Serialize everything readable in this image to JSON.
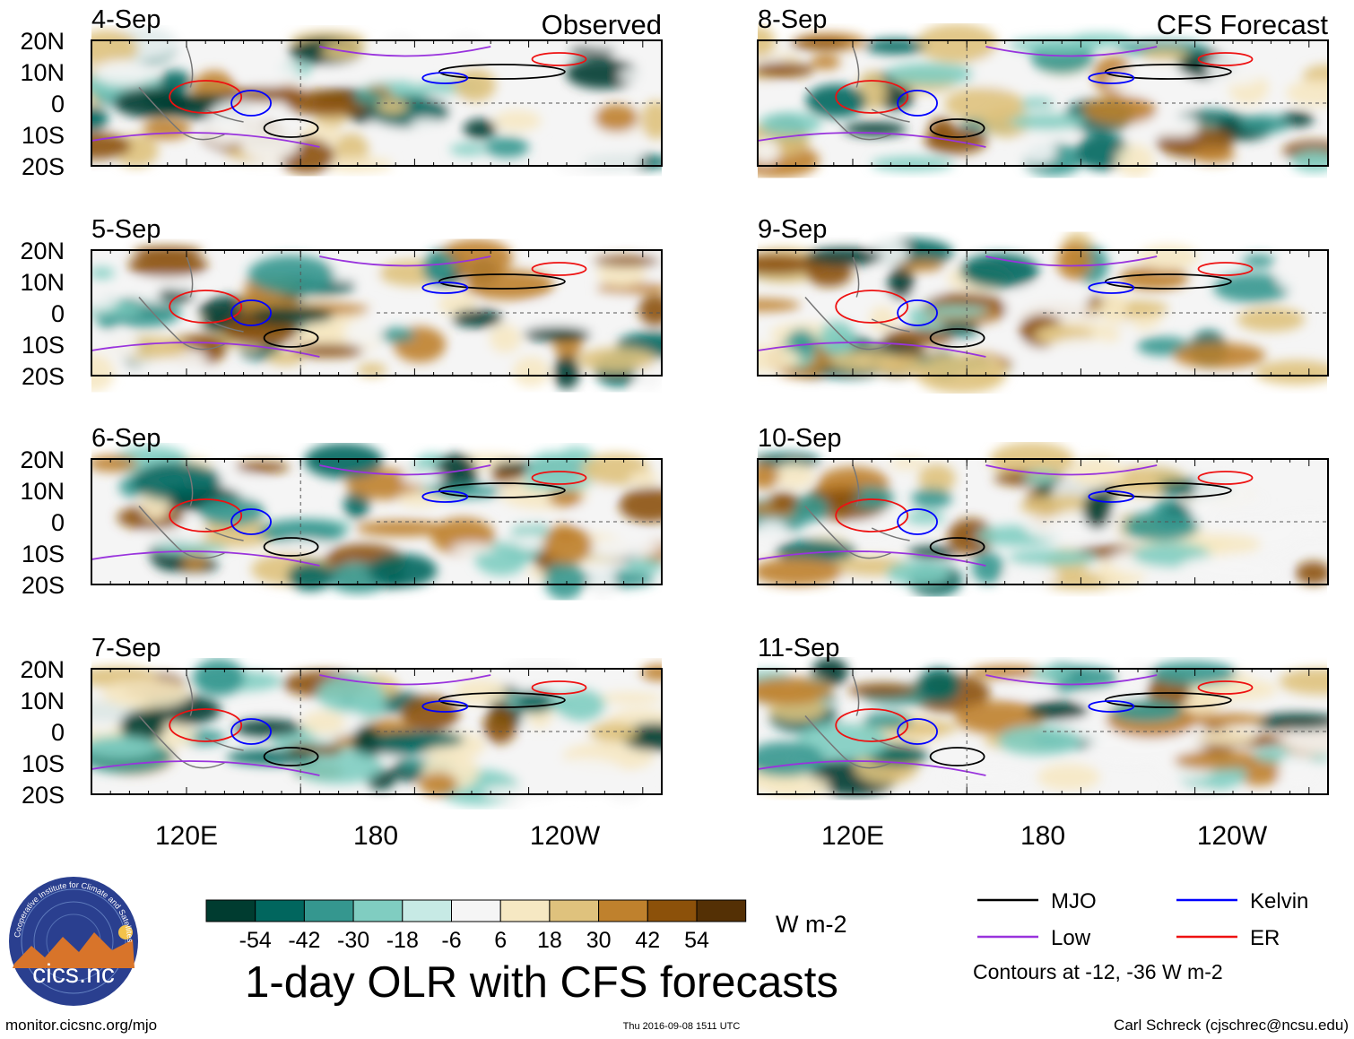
{
  "chart_data": {
    "type": "heatmap",
    "title": "1-day OLR with CFS forecasts",
    "units": "W m-2",
    "x_ticks": [
      "120E",
      "180",
      "120W"
    ],
    "y_ticks": [
      "20N",
      "10N",
      "0",
      "10S",
      "20S"
    ],
    "observed_label": "Observed",
    "forecast_label": "CFS Forecast",
    "colorbar": {
      "levels": [
        "-54",
        "-42",
        "-30",
        "-18",
        "-6",
        "6",
        "18",
        "30",
        "42",
        "54"
      ],
      "colors": [
        "#003c30",
        "#01665e",
        "#35978f",
        "#80cdc1",
        "#c7eae5",
        "#f5f5f5",
        "#f6e8c3",
        "#dfc27d",
        "#bf812d",
        "#8c510a",
        "#543005"
      ]
    },
    "legend": {
      "items": [
        {
          "name": "MJO",
          "color": "#000000"
        },
        {
          "name": "Kelvin",
          "color": "#0000ff"
        },
        {
          "name": "Low",
          "color": "#9933dd"
        },
        {
          "name": "ER",
          "color": "#ee1111"
        }
      ],
      "note": "Contours at -12, -36 W m-2"
    },
    "panels": [
      {
        "date": "4-Sep",
        "kind": "observed"
      },
      {
        "date": "5-Sep",
        "kind": "observed"
      },
      {
        "date": "6-Sep",
        "kind": "observed"
      },
      {
        "date": "7-Sep",
        "kind": "observed"
      },
      {
        "date": "8-Sep",
        "kind": "forecast"
      },
      {
        "date": "9-Sep",
        "kind": "forecast"
      },
      {
        "date": "10-Sep",
        "kind": "forecast"
      },
      {
        "date": "11-Sep",
        "kind": "forecast"
      }
    ]
  },
  "footer": {
    "left": "monitor.cicsnc.org/mjo",
    "center": "Thu 2016-09-08 1511 UTC",
    "right": "Carl Schreck (cjschrec@ncsu.edu)"
  },
  "logo": {
    "name": "cics.nc",
    "arc_text": "Cooperative Institute for Climate and Satellites"
  }
}
